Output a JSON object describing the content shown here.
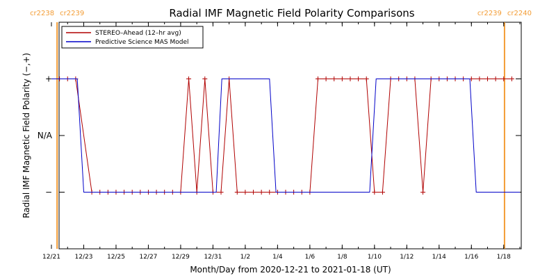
{
  "chart_data": {
    "type": "line",
    "title": "Radial IMF Magnetic Field Polarity Comparisons",
    "xlabel": "Month/Day from 2020-12-21 to 2021-01-18 (UT)",
    "ylabel": "Radial IMF Magnetic Field Polarity (−,+)",
    "x_unit": "days since 2020-12-21",
    "xlim": [
      0,
      29
    ],
    "ylim": [
      -2,
      2
    ],
    "x_ticks": [
      {
        "x": 0,
        "label": "12/21"
      },
      {
        "x": 2,
        "label": "12/23"
      },
      {
        "x": 4,
        "label": "12/25"
      },
      {
        "x": 6,
        "label": "12/27"
      },
      {
        "x": 8,
        "label": "12/29"
      },
      {
        "x": 10,
        "label": "12/31"
      },
      {
        "x": 12,
        "label": "1/2"
      },
      {
        "x": 14,
        "label": "1/4"
      },
      {
        "x": 16,
        "label": "1/6"
      },
      {
        "x": 18,
        "label": "1/8"
      },
      {
        "x": 20,
        "label": "1/10"
      },
      {
        "x": 22,
        "label": "1/12"
      },
      {
        "x": 24,
        "label": "1/14"
      },
      {
        "x": 26,
        "label": "1/16"
      },
      {
        "x": 28,
        "label": "1/18"
      }
    ],
    "y_ticks": [
      {
        "y": 1,
        "label": "+"
      },
      {
        "y": 0,
        "label": "N/A"
      },
      {
        "y": -1,
        "label": "−"
      }
    ],
    "carrington_markers": [
      {
        "x": 0.35,
        "label_left": "cr2238",
        "label_right": "cr2239"
      },
      {
        "x": 28.05,
        "label_left": "cr2239",
        "label_right": "cr2240"
      }
    ],
    "legend": {
      "position": "top-left"
    },
    "series": [
      {
        "name": "STEREO–Ahead (12–hr avg)",
        "color": "#b00000",
        "markers": "plus",
        "x": [
          0.5,
          1.0,
          1.5,
          2.5,
          3.0,
          3.5,
          4.0,
          4.5,
          5.0,
          5.5,
          6.0,
          6.5,
          7.0,
          7.5,
          8.0,
          8.5,
          9.0,
          9.5,
          10.0,
          10.5,
          11.0,
          11.5,
          12.0,
          12.5,
          13.0,
          13.5,
          14.0,
          14.5,
          15.0,
          15.5,
          16.0,
          16.5,
          17.0,
          17.5,
          18.0,
          18.5,
          19.0,
          19.5,
          20.0,
          20.5,
          21.0,
          21.5,
          22.0,
          22.5,
          23.0,
          23.5,
          24.0,
          24.5,
          25.0,
          25.5,
          26.0,
          26.5,
          27.0,
          27.5,
          28.0,
          28.5
        ],
        "y": [
          1,
          1,
          1,
          -1,
          -1,
          -1,
          -1,
          -1,
          -1,
          -1,
          -1,
          -1,
          -1,
          -1,
          -1,
          1,
          -1,
          1,
          -1,
          -1,
          1,
          -1,
          -1,
          -1,
          -1,
          -1,
          -1,
          -1,
          -1,
          -1,
          -1,
          1,
          1,
          1,
          1,
          1,
          1,
          1,
          -1,
          -1,
          1,
          1,
          1,
          1,
          -1,
          1,
          1,
          1,
          1,
          1,
          1,
          1,
          1,
          1,
          1,
          1
        ]
      },
      {
        "name": "Predictive Science MAS Model",
        "color": "#0000c8",
        "markers": "none",
        "x": [
          0.0,
          1.6,
          2.0,
          10.2,
          10.55,
          13.5,
          13.9,
          19.7,
          20.1,
          25.9,
          26.3,
          29.0
        ],
        "y": [
          1,
          1,
          -1,
          -1,
          1,
          1,
          -1,
          -1,
          1,
          1,
          -1,
          -1
        ]
      }
    ]
  }
}
